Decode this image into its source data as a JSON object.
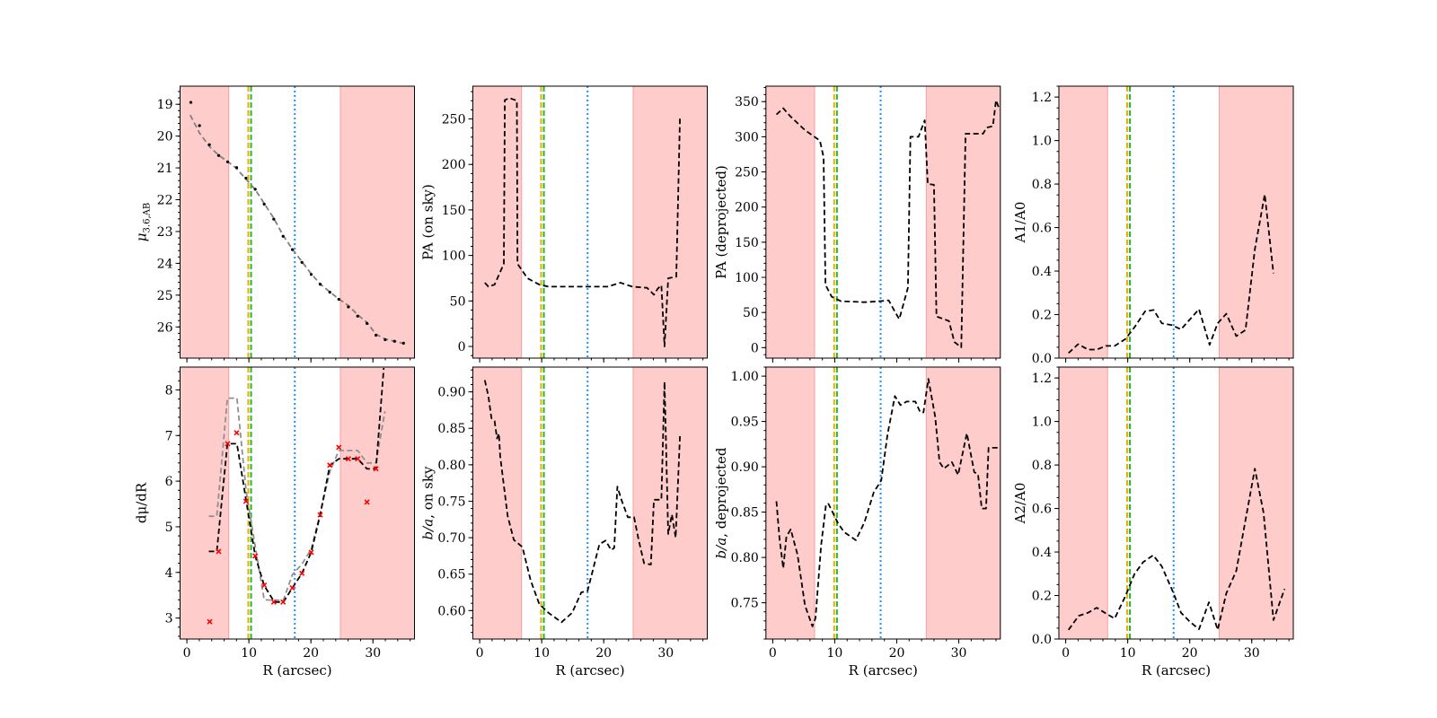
{
  "shared": {
    "xlim": [
      -1.1,
      36.7
    ],
    "xticks": [
      0,
      10,
      20,
      30
    ],
    "xticklabels": [
      "0",
      "10",
      "20",
      "30"
    ],
    "minor_xtick_step": 2,
    "xlabel": "R (arcsec)",
    "shaded_regions": [
      [
        -1.1,
        6.75
      ],
      [
        24.75,
        36.7
      ]
    ],
    "shade_color": "#ffcccc",
    "shade_edge": "#f4a0a0",
    "vlines": [
      {
        "x": 9.9,
        "color": "#e6b000",
        "style": "dashed"
      },
      {
        "x": 10.35,
        "color": "#22bb22",
        "style": "dashed"
      },
      {
        "x": 17.4,
        "color": "#1e90ff",
        "style": "dotted"
      }
    ]
  },
  "chart_data": [
    {
      "type": "line",
      "row": 0,
      "col": 0,
      "ylabel": "μ3.6,AB",
      "ylabel_main": "μ",
      "ylabel_sub": "3.6,AB",
      "ylim": [
        26.98,
        18.43
      ],
      "yticks": [
        19,
        20,
        21,
        22,
        23,
        24,
        25,
        26
      ],
      "yticklabels": [
        "19",
        "20",
        "21",
        "22",
        "23",
        "24",
        "25",
        "26"
      ],
      "minor_ytick_step": 0.2,
      "series": [
        {
          "role": "model",
          "color": "#808080",
          "style": "dashed",
          "x": [
            0.53,
            2.03,
            3.63,
            5.12,
            6.57,
            8.02,
            9.52,
            11.02,
            12.47,
            14.01,
            15.51,
            17.01,
            18.55,
            20.05,
            21.5,
            23.05,
            24.5,
            26.04,
            27.54,
            29.04,
            30.49,
            31.98,
            33.48,
            34.93
          ],
          "y": [
            19.34,
            19.9,
            20.33,
            20.6,
            20.8,
            21.02,
            21.35,
            21.68,
            22.12,
            22.58,
            23.12,
            23.55,
            23.95,
            24.33,
            24.65,
            24.9,
            25.12,
            25.33,
            25.62,
            25.86,
            26.23,
            26.38,
            26.45,
            26.52
          ]
        },
        {
          "role": "points",
          "color": "#000000",
          "style": "dots",
          "x": [
            0.63,
            2.03,
            3.63,
            5.12,
            6.57,
            8.02,
            9.52,
            11.02,
            12.47,
            14.01,
            15.51,
            17.01,
            18.55,
            20.05,
            21.5,
            23.05,
            24.5,
            26.04,
            27.54,
            29.04,
            30.49,
            31.98,
            33.48,
            34.93
          ],
          "y": [
            18.94,
            19.67,
            20.27,
            20.61,
            20.81,
            20.99,
            21.32,
            21.67,
            22.14,
            22.61,
            23.15,
            23.57,
            23.97,
            24.35,
            24.66,
            24.91,
            25.13,
            25.37,
            25.66,
            25.89,
            26.26,
            26.4,
            26.45,
            26.51
          ]
        }
      ]
    },
    {
      "type": "line",
      "row": 0,
      "col": 1,
      "ylabel": "PA (on sky)",
      "ylim": [
        -12.8,
        286
      ],
      "yticks": [
        0,
        50,
        100,
        150,
        200,
        250
      ],
      "yticklabels": [
        "0",
        "50",
        "100",
        "150",
        "200",
        "250"
      ],
      "minor_ytick_step": 10,
      "series": [
        {
          "color": "#000000",
          "style": "dashed",
          "x": [
            0.83,
            1.4,
            2.4,
            3.9,
            4.06,
            4.8,
            6.0,
            6.1,
            7.7,
            9.6,
            11.1,
            17.4,
            20.7,
            21.7,
            22.7,
            24.6,
            27.0,
            28.1,
            28.7,
            29.3,
            29.8,
            30.4,
            31.7,
            32.3
          ],
          "y": [
            70,
            65.7,
            68,
            90.8,
            270.7,
            273,
            270,
            90.8,
            75,
            68,
            65.7,
            65.7,
            65.7,
            68,
            70,
            65.7,
            64.4,
            56.8,
            63.4,
            67.3,
            0,
            75,
            76.6,
            252
          ]
        }
      ]
    },
    {
      "type": "line",
      "row": 0,
      "col": 2,
      "ylabel": "PA (deprojected)",
      "ylim": [
        -14.9,
        372
      ],
      "yticks": [
        0,
        50,
        100,
        150,
        200,
        250,
        300,
        350
      ],
      "yticklabels": [
        "0",
        "50",
        "100",
        "150",
        "200",
        "250",
        "300",
        "350"
      ],
      "minor_ytick_step": 10,
      "series": [
        {
          "color": "#000000",
          "style": "dashed",
          "x": [
            0.6,
            1.7,
            2.8,
            5.2,
            7.6,
            8.2,
            8.5,
            9.5,
            11.0,
            14.8,
            17.3,
            18.7,
            19.7,
            20.4,
            21.8,
            22.2,
            23.5,
            24.5,
            25.0,
            26.0,
            26.4,
            28.4,
            29.3,
            30.4,
            31.1,
            33.9,
            34.5,
            35.5,
            36.0,
            36.6
          ],
          "y": [
            331.6,
            340.6,
            329.5,
            309.4,
            294.5,
            271,
            89.4,
            72.4,
            66,
            64.7,
            66,
            67.3,
            51.1,
            40.5,
            85.2,
            300,
            300,
            323.5,
            233,
            231.7,
            44.3,
            37.9,
            8,
            0.4,
            304.3,
            304.3,
            313,
            315,
            352,
            338
          ]
        }
      ]
    },
    {
      "type": "line",
      "row": 0,
      "col": 3,
      "ylabel": "A1/A0",
      "ylim": [
        0,
        1.25
      ],
      "yticks": [
        0,
        0.2,
        0.4,
        0.6,
        0.8,
        1.0,
        1.2
      ],
      "yticklabels": [
        "0.0",
        "0.2",
        "0.4",
        "0.6",
        "0.8",
        "1.0",
        "1.2"
      ],
      "minor_ytick_step": 0.05,
      "series": [
        {
          "color": "#000000",
          "style": "dashed",
          "x": [
            0.45,
            2.0,
            3.6,
            5.0,
            6.5,
            7.9,
            9.6,
            11.1,
            12.8,
            14.2,
            15.5,
            17.1,
            18.6,
            21.5,
            23.2,
            24.5,
            25.9,
            27.5,
            29.0,
            30.5,
            32.1,
            33.5
          ],
          "y": [
            0.023,
            0.064,
            0.039,
            0.039,
            0.056,
            0.056,
            0.087,
            0.142,
            0.215,
            0.221,
            0.16,
            0.152,
            0.132,
            0.225,
            0.061,
            0.16,
            0.204,
            0.101,
            0.129,
            0.5,
            0.753,
            0.39
          ]
        }
      ]
    },
    {
      "type": "line",
      "row": 1,
      "col": 0,
      "ylabel": "dμ/dR",
      "ylim": [
        2.54,
        8.5
      ],
      "yticks": [
        3,
        4,
        5,
        6,
        7,
        8
      ],
      "yticklabels": [
        "3",
        "4",
        "5",
        "6",
        "7",
        "8"
      ],
      "minor_ytick_step": 0.2,
      "series": [
        {
          "role": "model",
          "color": "#909090",
          "style": "dashed",
          "x": [
            3.53,
            4.83,
            6.53,
            8.07,
            9.57,
            11.02,
            12.47,
            14.11,
            15.56,
            17.01,
            18.55,
            20.05,
            21.5,
            23.05,
            24.5,
            26.04,
            27.54,
            29.04,
            30.49,
            31.94
          ],
          "y": [
            5.23,
            5.23,
            7.82,
            7.82,
            5.76,
            4.57,
            3.4,
            3.39,
            3.39,
            3.95,
            4.18,
            4.51,
            5.29,
            6.21,
            6.67,
            6.67,
            6.67,
            6.4,
            6.4,
            7.53
          ]
        },
        {
          "role": "smoothed",
          "color": "#000000",
          "style": "dashed",
          "x": [
            3.53,
            4.83,
            6.53,
            8.07,
            9.57,
            11.02,
            12.47,
            14.11,
            15.56,
            17.01,
            18.55,
            20.05,
            21.5,
            23.05,
            24.5,
            26.04,
            27.54,
            29.04,
            30.49,
            31.74
          ],
          "y": [
            4.46,
            4.46,
            6.82,
            6.82,
            5.56,
            4.36,
            3.71,
            3.35,
            3.35,
            3.66,
            3.98,
            4.44,
            5.26,
            6.35,
            6.49,
            6.49,
            6.49,
            6.27,
            6.27,
            8.48
          ]
        },
        {
          "role": "raw",
          "color": "#ff0000",
          "style": "x-markers",
          "x": [
            3.68,
            5.12,
            6.57,
            8.02,
            9.52,
            11.02,
            12.47,
            14.01,
            15.51,
            17.01,
            18.55,
            20.05,
            21.5,
            23.05,
            24.5,
            26.04,
            27.54,
            29.04,
            30.49
          ],
          "y": [
            2.92,
            4.46,
            6.82,
            7.06,
            5.56,
            4.36,
            3.72,
            3.35,
            3.35,
            3.66,
            3.98,
            4.44,
            5.26,
            6.35,
            6.74,
            6.49,
            6.49,
            5.54,
            6.27
          ]
        }
      ]
    },
    {
      "type": "line",
      "row": 1,
      "col": 1,
      "ylabel": "b/a, on sky",
      "ylabel_main": "b/a",
      "ylabel_rest": ", on sky",
      "ylim": [
        0.561,
        0.934
      ],
      "yticks": [
        0.6,
        0.65,
        0.7,
        0.75,
        0.8,
        0.85,
        0.9
      ],
      "yticklabels": [
        "0.60",
        "0.65",
        "0.70",
        "0.75",
        "0.80",
        "0.85",
        "0.90"
      ],
      "minor_ytick_step": 0.01,
      "series": [
        {
          "color": "#000000",
          "style": "dashed",
          "x": [
            0.83,
            1.4,
            1.9,
            2.4,
            2.8,
            3.1,
            3.3,
            4.5,
            5.5,
            6.9,
            8.2,
            9.6,
            11.1,
            13.2,
            14.9,
            16.4,
            17.4,
            19.3,
            20.3,
            21.2,
            21.7,
            22.2,
            22.9,
            23.9,
            24.9,
            25.6,
            26.5,
            27.6,
            28.1,
            29.3,
            29.8,
            30.4,
            31.0,
            31.6,
            32.3
          ],
          "y": [
            0.916,
            0.894,
            0.864,
            0.86,
            0.836,
            0.843,
            0.812,
            0.73,
            0.697,
            0.687,
            0.642,
            0.609,
            0.597,
            0.584,
            0.597,
            0.625,
            0.627,
            0.691,
            0.696,
            0.683,
            0.686,
            0.77,
            0.751,
            0.728,
            0.728,
            0.698,
            0.665,
            0.663,
            0.752,
            0.752,
            0.914,
            0.705,
            0.732,
            0.7,
            0.84
          ]
        }
      ]
    },
    {
      "type": "line",
      "row": 1,
      "col": 2,
      "ylabel": "b/a, deprojected",
      "ylabel_main": "b/a",
      "ylabel_rest": ", deprojected",
      "ylim": [
        0.71,
        1.01
      ],
      "yticks": [
        0.75,
        0.8,
        0.85,
        0.9,
        0.95,
        1.0
      ],
      "yticklabels": [
        "0.75",
        "0.80",
        "0.85",
        "0.90",
        "0.95",
        "1.00"
      ],
      "minor_ytick_step": 0.01,
      "series": [
        {
          "color": "#000000",
          "style": "dashed",
          "x": [
            0.6,
            1.1,
            1.7,
            2.2,
            2.9,
            4.0,
            5.2,
            6.4,
            6.9,
            7.8,
            8.6,
            9.0,
            10.5,
            11.5,
            13.4,
            14.8,
            16.3,
            17.5,
            18.5,
            19.7,
            20.6,
            21.6,
            23.0,
            23.8,
            24.3,
            25.1,
            26.2,
            26.9,
            27.6,
            28.9,
            29.9,
            31.3,
            32.5,
            33.1,
            33.7,
            34.4,
            34.8,
            36.5
          ],
          "y": [
            0.862,
            0.82,
            0.788,
            0.823,
            0.831,
            0.803,
            0.747,
            0.724,
            0.733,
            0.814,
            0.859,
            0.859,
            0.838,
            0.828,
            0.819,
            0.839,
            0.872,
            0.885,
            0.935,
            0.978,
            0.968,
            0.972,
            0.972,
            0.96,
            0.96,
            0.997,
            0.955,
            0.905,
            0.898,
            0.905,
            0.891,
            0.937,
            0.894,
            0.892,
            0.854,
            0.854,
            0.921,
            0.921
          ]
        }
      ]
    },
    {
      "type": "line",
      "row": 1,
      "col": 3,
      "ylabel": "A2/A0",
      "ylim": [
        0,
        1.25
      ],
      "yticks": [
        0,
        0.2,
        0.4,
        0.6,
        0.8,
        1.0,
        1.2
      ],
      "yticklabels": [
        "0.0",
        "0.2",
        "0.4",
        "0.6",
        "0.8",
        "1.0",
        "1.2"
      ],
      "minor_ytick_step": 0.05,
      "series": [
        {
          "color": "#000000",
          "style": "dashed",
          "x": [
            0.45,
            2.1,
            3.6,
            5.0,
            6.5,
            7.9,
            9.6,
            11.1,
            12.5,
            14.1,
            15.5,
            17.4,
            18.6,
            20.0,
            21.5,
            23.1,
            24.5,
            25.9,
            27.5,
            30.5,
            31.9,
            33.5,
            35.3
          ],
          "y": [
            0.042,
            0.107,
            0.121,
            0.144,
            0.117,
            0.094,
            0.196,
            0.299,
            0.354,
            0.385,
            0.334,
            0.21,
            0.121,
            0.08,
            0.045,
            0.169,
            0.042,
            0.21,
            0.313,
            0.783,
            0.58,
            0.087,
            0.23
          ]
        }
      ]
    }
  ]
}
